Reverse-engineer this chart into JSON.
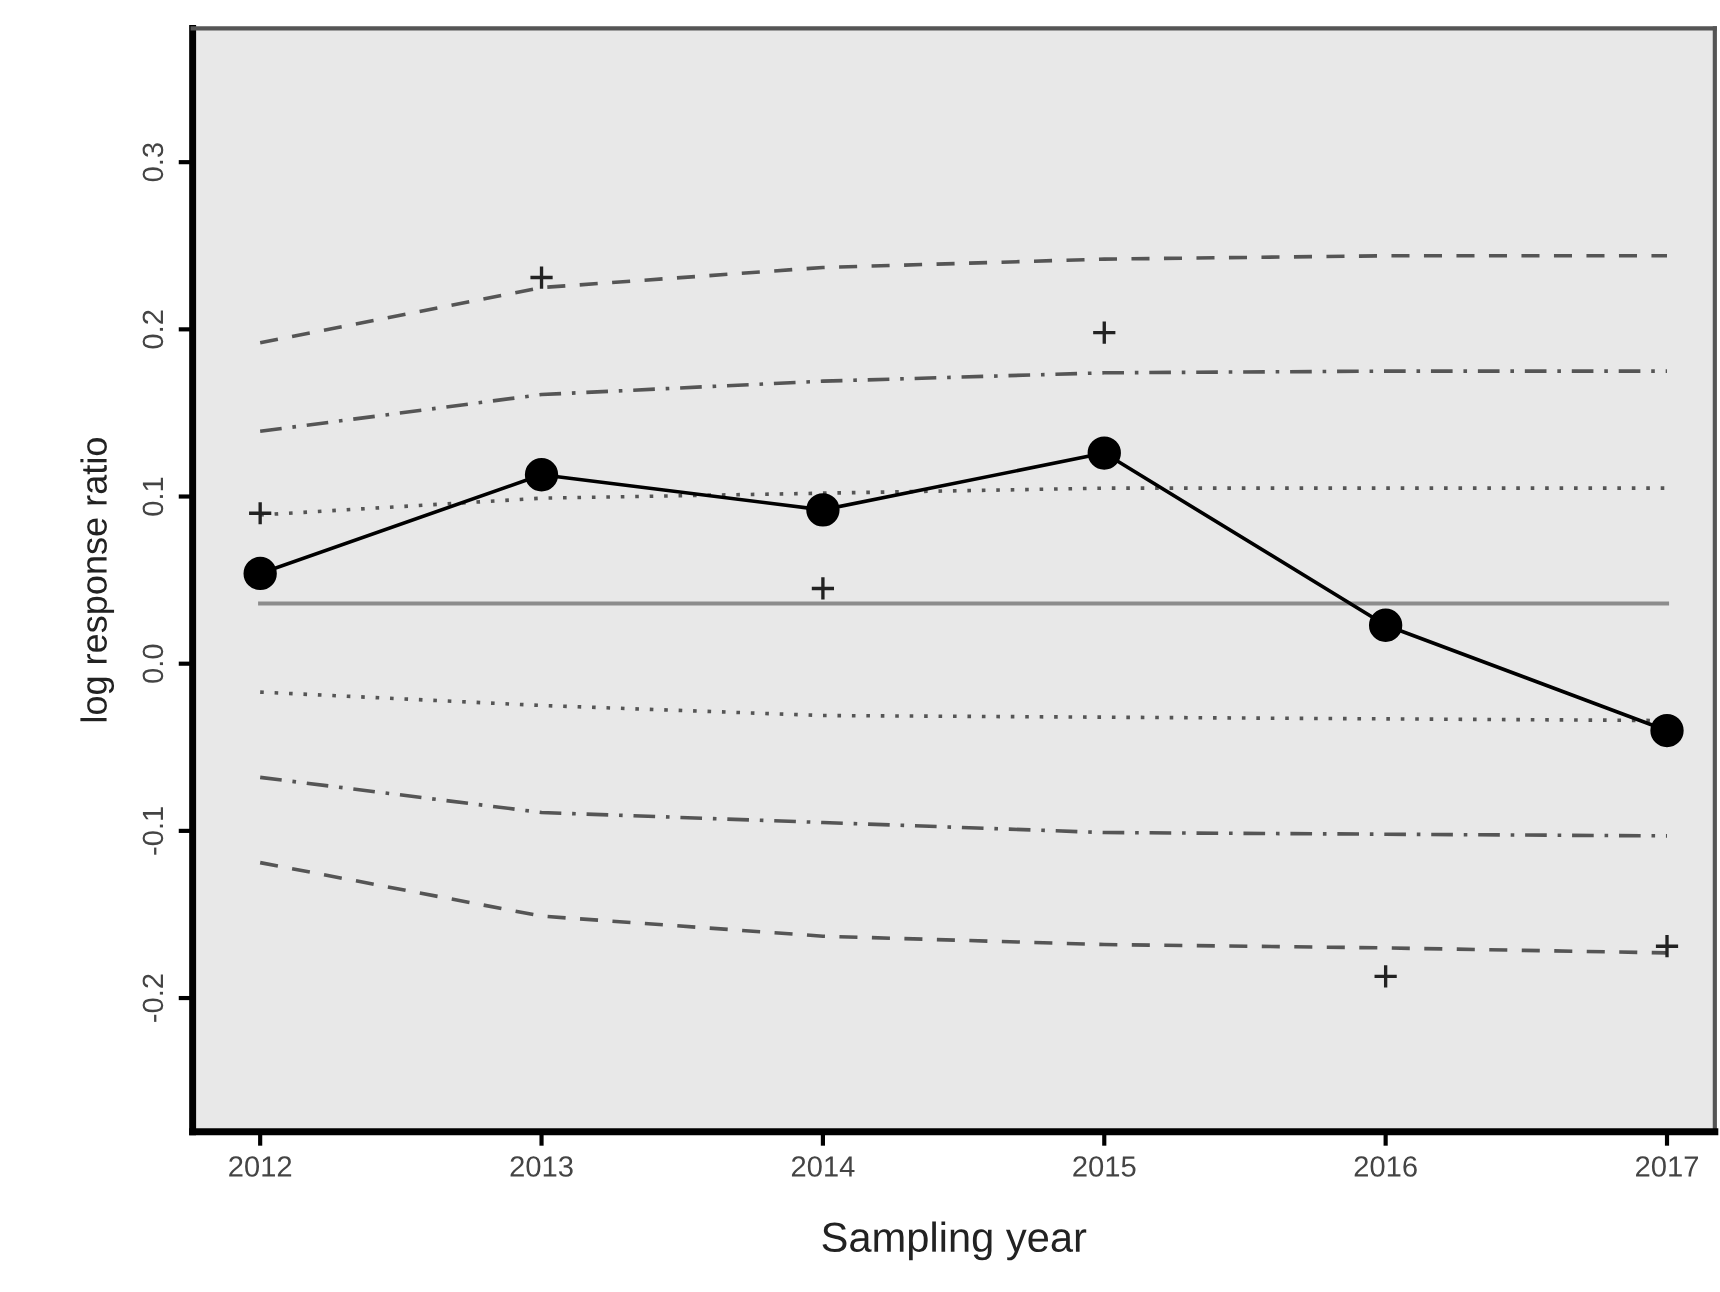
{
  "chart_data": {
    "type": "line",
    "xlabel": "Sampling year",
    "ylabel": "log response ratio",
    "x": [
      2012,
      2013,
      2014,
      2015,
      2016,
      2017
    ],
    "xlim": [
      2011.76,
      2017.17
    ],
    "xticks": [
      2012,
      2013,
      2014,
      2015,
      2016,
      2017
    ],
    "ylim": [
      -0.28,
      0.38
    ],
    "yticks": [
      {
        "value": -0.2,
        "label": "-0.2"
      },
      {
        "value": -0.1,
        "label": "-0.1"
      },
      {
        "value": 0,
        "label": "0.0"
      },
      {
        "value": 0.1,
        "label": "0.1"
      },
      {
        "value": 0.2,
        "label": "0.2"
      },
      {
        "value": 0.3,
        "label": "0.3"
      }
    ],
    "grid": false,
    "legend": false,
    "ref_lines": [
      {
        "axis": "y",
        "value": 0.036,
        "color": "#8c8c8c",
        "line_style": "solid"
      }
    ],
    "series": [
      {
        "type": "line",
        "color": "#555555",
        "line_style": "dashed",
        "marker": "none",
        "values": [
          0.192,
          0.225,
          0.237,
          0.242,
          0.244,
          0.244
        ]
      },
      {
        "type": "line",
        "color": "#555555",
        "line_style": "dashdot",
        "marker": "none",
        "values": [
          0.139,
          0.161,
          0.169,
          0.174,
          0.175,
          0.175
        ]
      },
      {
        "type": "line",
        "color": "#555555",
        "line_style": "dotted",
        "marker": "none",
        "values": [
          0.089,
          0.099,
          0.102,
          0.105,
          0.105,
          0.105
        ]
      },
      {
        "type": "line",
        "color": "#555555",
        "line_style": "dotted",
        "marker": "none",
        "values": [
          -0.017,
          -0.025,
          -0.031,
          -0.032,
          -0.033,
          -0.034
        ]
      },
      {
        "type": "line",
        "color": "#555555",
        "line_style": "dashdot",
        "marker": "none",
        "values": [
          -0.068,
          -0.089,
          -0.095,
          -0.101,
          -0.102,
          -0.103
        ]
      },
      {
        "type": "line",
        "color": "#555555",
        "line_style": "dashed",
        "marker": "none",
        "values": [
          -0.119,
          -0.151,
          -0.163,
          -0.168,
          -0.17,
          -0.173
        ]
      },
      {
        "type": "scatter",
        "color": "#222222",
        "marker": "cross",
        "values": [
          0.09,
          0.231,
          0.045,
          0.198,
          -0.187,
          -0.169
        ]
      },
      {
        "type": "line",
        "color": "#000000",
        "line_style": "solid",
        "marker": "circle",
        "values": [
          0.054,
          0.113,
          0.092,
          0.126,
          0.023,
          -0.04
        ]
      }
    ]
  }
}
